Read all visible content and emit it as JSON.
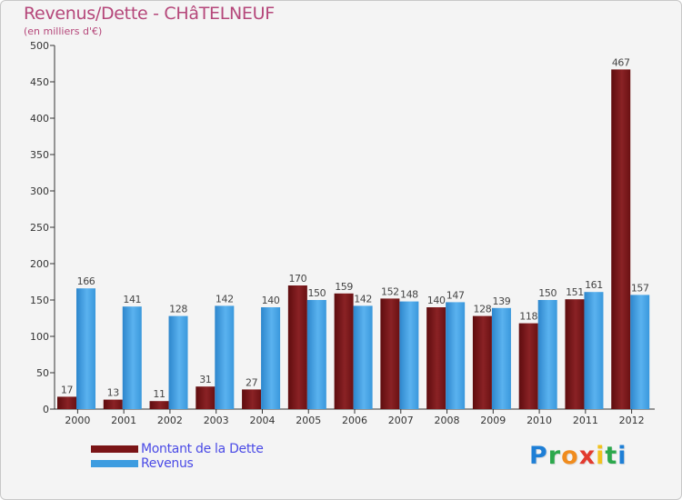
{
  "title": "Revenus/Dette - CHâTELNEUF",
  "subtitle": "(en milliers d'€)",
  "logo": {
    "letters": [
      "P",
      "r",
      "o",
      "x",
      "i",
      "t",
      "i"
    ],
    "colors": [
      "#1e7fd6",
      "#2ca84c",
      "#f08c1e",
      "#e23a2e",
      "#f2c21e",
      "#2ca84c",
      "#1e7fd6"
    ]
  },
  "colors": {
    "dette": "#7a1416",
    "revenus": "#3d9ce0",
    "axis": "#333333",
    "grid": "#dcdcdc"
  },
  "chart_data": {
    "type": "bar",
    "title": "Revenus/Dette - CHâTELNEUF",
    "subtitle": "(en milliers d'€)",
    "categories": [
      "2000",
      "2001",
      "2002",
      "2003",
      "2004",
      "2005",
      "2006",
      "2007",
      "2008",
      "2009",
      "2010",
      "2011",
      "2012"
    ],
    "series": [
      {
        "name": "Montant de la Dette",
        "values": [
          17,
          13,
          11,
          31,
          27,
          170,
          159,
          152,
          140,
          128,
          118,
          151,
          467
        ]
      },
      {
        "name": "Revenus",
        "values": [
          166,
          141,
          128,
          142,
          140,
          150,
          142,
          148,
          147,
          139,
          150,
          161,
          157
        ]
      }
    ],
    "ylim": [
      0,
      500
    ],
    "yticks": [
      0,
      50,
      100,
      150,
      200,
      250,
      300,
      350,
      400,
      450,
      500
    ],
    "legend_position": "bottom-left",
    "grid": false
  }
}
